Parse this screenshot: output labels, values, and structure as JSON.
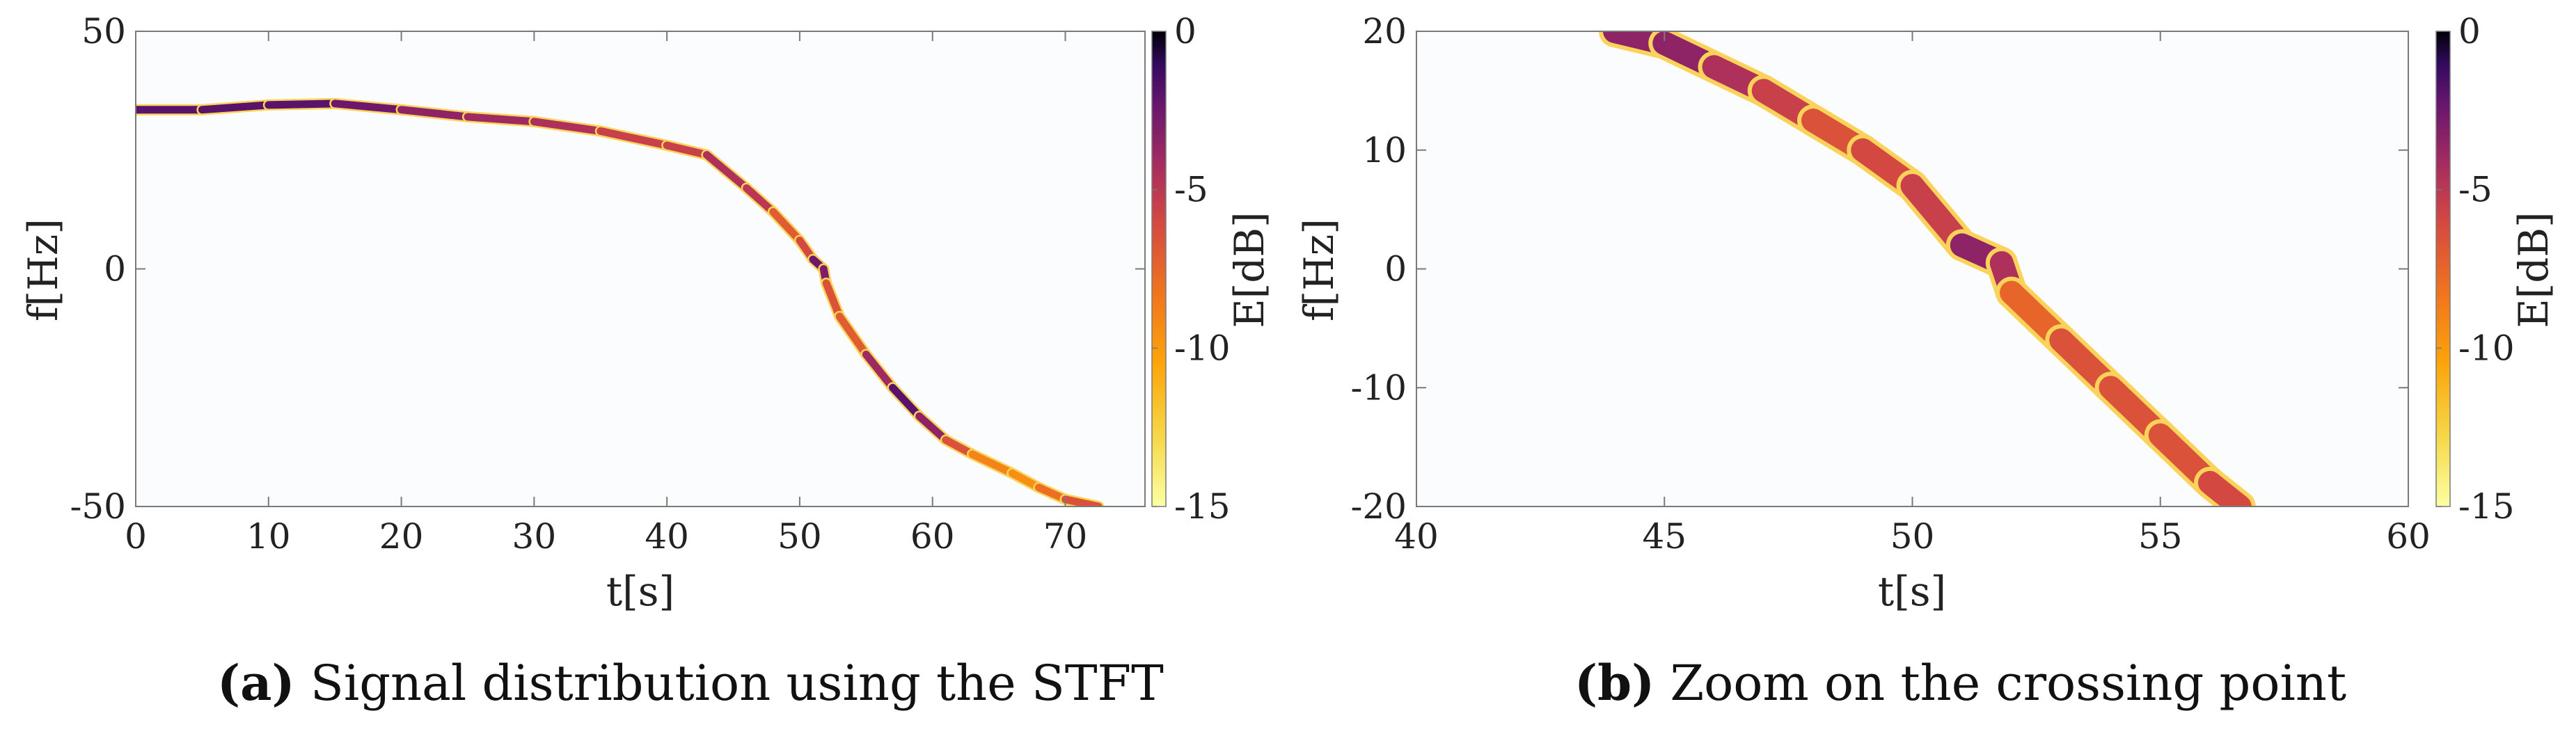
{
  "chart_data": [
    {
      "panel": "a",
      "type": "heatmap",
      "title": "",
      "xlabel": "t[s]",
      "ylabel": "f[Hz]",
      "colorbar_label": "E[dB]",
      "xlim": [
        0,
        76
      ],
      "ylim": [
        -50,
        50
      ],
      "clim": [
        -15,
        0
      ],
      "xticks": [
        0,
        10,
        20,
        30,
        40,
        50,
        60,
        70
      ],
      "yticks": [
        50,
        0,
        -50
      ],
      "cticks": [
        0,
        -5,
        -10,
        -15
      ],
      "xtick_labels": [
        "0",
        "10",
        "20",
        "30",
        "40",
        "50",
        "60",
        "70"
      ],
      "ytick_labels": [
        "50",
        "0",
        "-50"
      ],
      "ctick_labels": [
        "0",
        "-5",
        "-10",
        "-15"
      ],
      "ridge": [
        [
          0,
          33.5
        ],
        [
          5,
          33.5
        ],
        [
          10,
          34.5
        ],
        [
          15,
          34.8
        ],
        [
          20,
          33.5
        ],
        [
          25,
          32
        ],
        [
          30,
          31
        ],
        [
          35,
          29
        ],
        [
          40,
          26
        ],
        [
          43,
          24
        ],
        [
          46,
          17
        ],
        [
          48,
          12
        ],
        [
          50,
          6
        ],
        [
          51,
          2
        ],
        [
          51.8,
          0
        ],
        [
          52,
          -3
        ],
        [
          53,
          -10
        ],
        [
          55,
          -18
        ],
        [
          57,
          -25
        ],
        [
          59,
          -31
        ],
        [
          61,
          -36
        ],
        [
          63,
          -39
        ],
        [
          66,
          -43
        ],
        [
          68,
          -46
        ],
        [
          70,
          -48.5
        ],
        [
          72.5,
          -50
        ]
      ],
      "ridge_energy": [
        -2,
        -2,
        -2,
        -2,
        -3,
        -4,
        -4,
        -5,
        -6,
        -5,
        -4,
        -6,
        -8,
        -4,
        -1,
        -5,
        -8,
        -6,
        -2,
        -2,
        -5,
        -8,
        -10,
        -9,
        -7,
        -6
      ]
    },
    {
      "panel": "b",
      "type": "heatmap",
      "title": "",
      "xlabel": "t[s]",
      "ylabel": "f[Hz]",
      "colorbar_label": "E[dB]",
      "xlim": [
        40,
        60
      ],
      "ylim": [
        -20,
        20
      ],
      "clim": [
        -15,
        0
      ],
      "xticks": [
        40,
        45,
        50,
        55,
        60
      ],
      "yticks": [
        20,
        10,
        0,
        -10,
        -20
      ],
      "cticks": [
        0,
        -5,
        -10,
        -15
      ],
      "xtick_labels": [
        "40",
        "45",
        "50",
        "55",
        "60"
      ],
      "ytick_labels": [
        "20",
        "10",
        "0",
        "-10",
        "-20"
      ],
      "ctick_labels": [
        "0",
        "-5",
        "-10",
        "-15"
      ],
      "ridge": [
        [
          44,
          20
        ],
        [
          45,
          19
        ],
        [
          46,
          17
        ],
        [
          47,
          15
        ],
        [
          48,
          12.5
        ],
        [
          49,
          10
        ],
        [
          50,
          7
        ],
        [
          51,
          2
        ],
        [
          51.8,
          0.5
        ],
        [
          52,
          -2
        ],
        [
          53,
          -6
        ],
        [
          54,
          -10
        ],
        [
          55,
          -14
        ],
        [
          56,
          -18
        ],
        [
          56.6,
          -20
        ]
      ],
      "ridge_energy": [
        -4,
        -3,
        -4,
        -5,
        -6,
        -7,
        -5,
        -6,
        -1,
        -8,
        -7,
        -6,
        -7,
        -6,
        -6
      ]
    }
  ],
  "captions": [
    {
      "tag": "(a)",
      "text": "Signal distribution using the STFT"
    },
    {
      "tag": "(b)",
      "text": "Zoom on the crossing point"
    }
  ]
}
